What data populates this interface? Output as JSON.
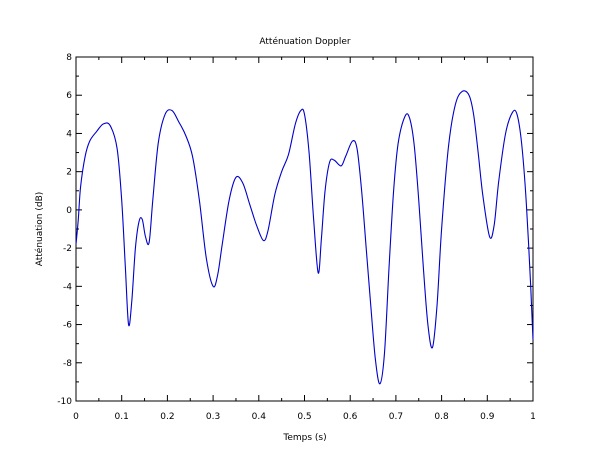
{
  "chart_data": {
    "type": "line",
    "title": "Atténuation Doppler",
    "xlabel": "Temps (s)",
    "ylabel": "Atténuation (dB)",
    "xlim": [
      0,
      1
    ],
    "ylim": [
      -10,
      8
    ],
    "grid": false,
    "xticks": [
      0,
      0.1,
      0.2,
      0.3,
      0.4,
      0.5,
      0.6,
      0.7,
      0.8,
      0.9,
      1
    ],
    "xtick_labels": [
      "0",
      "0.1",
      "0.2",
      "0.3",
      "0.4",
      "0.5",
      "0.6",
      "0.7",
      "0.8",
      "0.9",
      "1"
    ],
    "yticks": [
      -10,
      -8,
      -6,
      -4,
      -2,
      0,
      2,
      4,
      6,
      8
    ],
    "ytick_labels": [
      "-10",
      "-8",
      "-6",
      "-4",
      "-2",
      "0",
      "2",
      "4",
      "6",
      "8"
    ],
    "series": [
      {
        "color": "#0000cc",
        "x": [
          0,
          0.005,
          0.01,
          0.02,
          0.03,
          0.045,
          0.06,
          0.075,
          0.09,
          0.1,
          0.108,
          0.115,
          0.122,
          0.13,
          0.138,
          0.145,
          0.152,
          0.16,
          0.168,
          0.18,
          0.195,
          0.21,
          0.225,
          0.24,
          0.255,
          0.27,
          0.285,
          0.3,
          0.31,
          0.32,
          0.335,
          0.35,
          0.365,
          0.38,
          0.395,
          0.41,
          0.42,
          0.435,
          0.45,
          0.465,
          0.48,
          0.492,
          0.5,
          0.51,
          0.52,
          0.53,
          0.537,
          0.545,
          0.555,
          0.565,
          0.58,
          0.59,
          0.605,
          0.615,
          0.625,
          0.635,
          0.645,
          0.655,
          0.665,
          0.675,
          0.685,
          0.695,
          0.705,
          0.72,
          0.73,
          0.74,
          0.75,
          0.76,
          0.77,
          0.78,
          0.79,
          0.8,
          0.815,
          0.83,
          0.845,
          0.86,
          0.87,
          0.88,
          0.89,
          0.905,
          0.915,
          0.925,
          0.94,
          0.955,
          0.965,
          0.975,
          0.985,
          0.995,
          1.0
        ],
        "y": [
          -1.8,
          -0.5,
          1.2,
          2.8,
          3.6,
          4.1,
          4.5,
          4.4,
          3.2,
          0.5,
          -3.0,
          -6.0,
          -4.8,
          -2.0,
          -0.6,
          -0.5,
          -1.4,
          -1.7,
          0.5,
          3.5,
          5.0,
          5.2,
          4.6,
          3.9,
          2.8,
          0.5,
          -2.5,
          -4.0,
          -3.4,
          -1.8,
          0.5,
          1.7,
          1.4,
          0.3,
          -0.8,
          -1.6,
          -1.1,
          0.8,
          2.0,
          2.9,
          4.5,
          5.2,
          5.0,
          3.0,
          -0.5,
          -3.3,
          -1.5,
          1.0,
          2.5,
          2.6,
          2.3,
          2.8,
          3.6,
          3.2,
          1.0,
          -2.0,
          -5.0,
          -7.8,
          -9.1,
          -7.5,
          -3.0,
          1.0,
          3.5,
          4.9,
          4.8,
          3.4,
          0.5,
          -3.0,
          -6.0,
          -7.2,
          -5.0,
          -1.0,
          3.3,
          5.5,
          6.2,
          6.0,
          5.0,
          3.0,
          0.8,
          -1.4,
          -0.8,
          1.5,
          4.0,
          5.1,
          5.0,
          3.5,
          0.5,
          -4.0,
          -6.8
        ]
      }
    ]
  }
}
